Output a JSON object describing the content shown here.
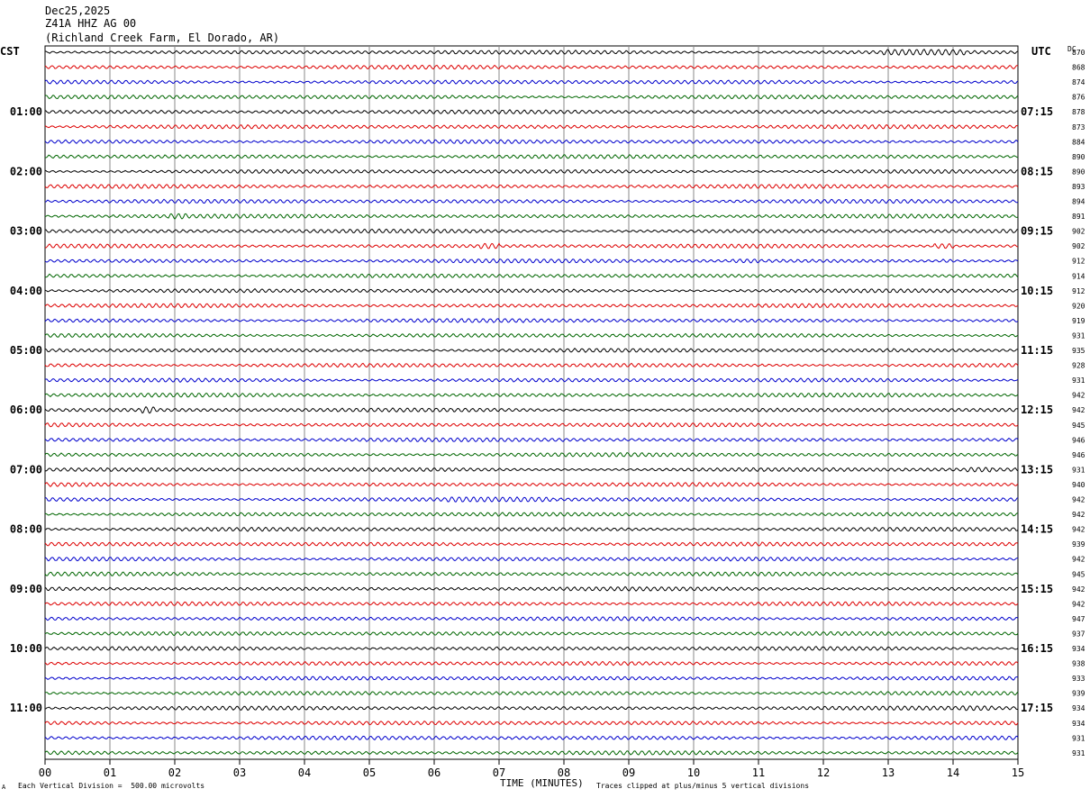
{
  "header": {
    "date": "Dec25,2025",
    "station": "Z41A HHZ AG 00",
    "location": "(Richland Creek Farm, El Dorado, AR)"
  },
  "labels": {
    "left_tz": "CST",
    "right_tz": "UTC",
    "dc_header": "DC"
  },
  "footer": {
    "division_note": "Each Vertical Division =  500.00 microvolts",
    "xlabel": "TIME (MINUTES)",
    "clip_note": "Traces clipped at plus/minus 5 vertical divisions",
    "corner_mark": "A"
  },
  "chart_data": {
    "type": "line",
    "title": "Dec25,2025 Z41A HHZ AG 00 (Richland Creek Farm, El Dorado, AR)",
    "xlabel": "TIME (MINUTES)",
    "ylabel": "",
    "xlim": [
      0,
      15
    ],
    "x_ticks": [
      "00",
      "01",
      "02",
      "03",
      "04",
      "05",
      "06",
      "07",
      "08",
      "09",
      "10",
      "11",
      "12",
      "13",
      "14",
      "15"
    ],
    "row_minutes": 15,
    "rows": 48,
    "trace_colors": [
      "#000000",
      "#dd0000",
      "#0000cc",
      "#006600"
    ],
    "left_time_labels": [
      {
        "row": 4,
        "label": "01:00"
      },
      {
        "row": 8,
        "label": "02:00"
      },
      {
        "row": 12,
        "label": "03:00"
      },
      {
        "row": 16,
        "label": "04:00"
      },
      {
        "row": 20,
        "label": "05:00"
      },
      {
        "row": 24,
        "label": "06:00"
      },
      {
        "row": 28,
        "label": "07:00"
      },
      {
        "row": 32,
        "label": "08:00"
      },
      {
        "row": 36,
        "label": "09:00"
      },
      {
        "row": 40,
        "label": "10:00"
      },
      {
        "row": 44,
        "label": "11:00"
      }
    ],
    "right_time_labels": [
      {
        "row": 4,
        "label": "07:15"
      },
      {
        "row": 8,
        "label": "08:15"
      },
      {
        "row": 12,
        "label": "09:15"
      },
      {
        "row": 16,
        "label": "10:15"
      },
      {
        "row": 20,
        "label": "11:15"
      },
      {
        "row": 24,
        "label": "12:15"
      },
      {
        "row": 28,
        "label": "13:15"
      },
      {
        "row": 32,
        "label": "14:15"
      },
      {
        "row": 36,
        "label": "15:15"
      },
      {
        "row": 40,
        "label": "16:15"
      },
      {
        "row": 44,
        "label": "17:15"
      }
    ],
    "dc_offsets": [
      "870",
      "868",
      "874",
      "876",
      "878",
      "873",
      "884",
      "890",
      "890",
      "893",
      "894",
      "891",
      "902",
      "902",
      "912",
      "914",
      "912",
      "920",
      "919",
      "931",
      "935",
      "928",
      "931",
      "942",
      "942",
      "945",
      "946",
      "946",
      "931",
      "940",
      "942",
      "942",
      "942",
      "939",
      "942",
      "945",
      "942",
      "942",
      "947",
      "937",
      "934",
      "938",
      "933",
      "939",
      "934",
      "934",
      "931",
      "931"
    ],
    "events": [
      {
        "row": 0,
        "minute_start": 12.9,
        "minute_end": 14.2,
        "amplitude": 1.8
      },
      {
        "row": 4,
        "minute_start": 3.4,
        "minute_end": 4.5,
        "amplitude": 1.6
      },
      {
        "row": 11,
        "minute_start": 1.9,
        "minute_end": 2.2,
        "amplitude": 1.5
      },
      {
        "row": 13,
        "minute_start": 6.7,
        "minute_end": 7.0,
        "amplitude": 2.0
      },
      {
        "row": 13,
        "minute_start": 13.7,
        "minute_end": 14.0,
        "amplitude": 2.6
      },
      {
        "row": 14,
        "minute_start": 10.6,
        "minute_end": 11.0,
        "amplitude": 1.5
      },
      {
        "row": 14,
        "minute_start": 13.8,
        "minute_end": 14.0,
        "amplitude": 1.5
      },
      {
        "row": 24,
        "minute_start": 1.5,
        "minute_end": 1.7,
        "amplitude": 2.2
      },
      {
        "row": 28,
        "minute_start": 14.2,
        "minute_end": 14.6,
        "amplitude": 1.6
      },
      {
        "row": 30,
        "minute_start": 6.2,
        "minute_end": 7.8,
        "amplitude": 1.6
      },
      {
        "row": 44,
        "minute_start": 14.1,
        "minute_end": 14.6,
        "amplitude": 1.4
      }
    ]
  }
}
